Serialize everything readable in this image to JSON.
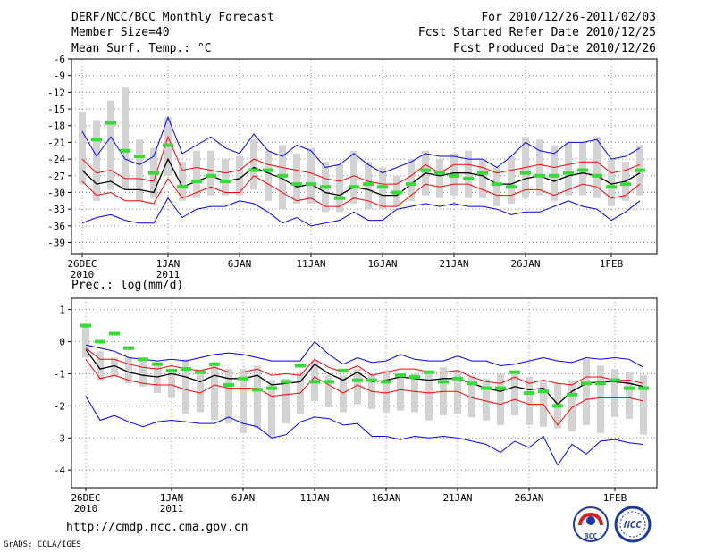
{
  "header": {
    "title": "DERF/NCC/BCC Monthly Forecast",
    "member_size": "Member Size=40",
    "variable": "Mean Surf. Temp.: °C",
    "for_period": "For 2010/12/26-2011/02/03",
    "fcst_started": "Fcst Started Refer Date 2010/12/25",
    "fcst_produced": "Fcst Produced Date 2010/12/26"
  },
  "footer": {
    "url": "http://cmdp.ncc.cma.gov.cn",
    "credit": "GrADS: COLA/IGES",
    "logo_bcc": "BCC",
    "logo_ncc": "NCC"
  },
  "colors": {
    "envelope": "#0000ff",
    "spread": "#ff0000",
    "mean": "#000000",
    "box": "#d3d3d3",
    "observed": "#33dd33",
    "grid": "#888888"
  },
  "chart_data": [
    {
      "type": "line",
      "title": "Mean Surf. Temp.: °C",
      "x_start": "2010-12-26",
      "x_end": "2011-02-03",
      "x_ticks": [
        {
          "day": 0,
          "label": "26DEC",
          "sub": "2010"
        },
        {
          "day": 6,
          "label": "1JAN",
          "sub": "2011"
        },
        {
          "day": 11,
          "label": "6JAN",
          "sub": ""
        },
        {
          "day": 16,
          "label": "11JAN",
          "sub": ""
        },
        {
          "day": 21,
          "label": "16JAN",
          "sub": ""
        },
        {
          "day": 26,
          "label": "21JAN",
          "sub": ""
        },
        {
          "day": 31,
          "label": "26JAN",
          "sub": ""
        },
        {
          "day": 37,
          "label": "1FEB",
          "sub": ""
        }
      ],
      "y_ticks": [
        "-6",
        "-9",
        "-12",
        "-15",
        "-18",
        "-21",
        "-24",
        "-27",
        "-30",
        "-33",
        "-36",
        "-39"
      ],
      "ylim": [
        -41,
        -6
      ],
      "grid": true,
      "series": [
        {
          "name": "max",
          "values": [
            -19,
            -23.5,
            -20,
            -24,
            -25,
            -23.5,
            -16.5,
            -23,
            -21.5,
            -20,
            -22,
            -23,
            -19.5,
            -22.5,
            -23.5,
            -21.5,
            -22.5,
            -25.5,
            -25,
            -23,
            -25,
            -26.5,
            -25.5,
            -24.5,
            -23,
            -23.5,
            -23.5,
            -24,
            -24,
            -25.5,
            -23.5,
            -21,
            -22.5,
            -23,
            -21,
            -21,
            -20.5,
            -24,
            -23.5,
            -22
          ]
        },
        {
          "name": "upper",
          "values": [
            -24,
            -26.5,
            -26,
            -27.5,
            -27.5,
            -28,
            -20,
            -26,
            -25.5,
            -26,
            -26.5,
            -26,
            -24,
            -25,
            -25.5,
            -26,
            -26.5,
            -27.5,
            -28,
            -27,
            -28,
            -28.5,
            -28.5,
            -27,
            -25,
            -26.5,
            -25,
            -25,
            -25.5,
            -26.5,
            -26,
            -25.5,
            -25,
            -25.5,
            -25,
            -24.5,
            -24.5,
            -26.5,
            -26,
            -25
          ]
        },
        {
          "name": "mean",
          "values": [
            -26,
            -28.5,
            -28,
            -29.5,
            -29.5,
            -30,
            -24,
            -29,
            -28,
            -27,
            -28,
            -27.5,
            -25.5,
            -26.5,
            -27.5,
            -29,
            -28.5,
            -30,
            -30.5,
            -29,
            -29.5,
            -30.5,
            -30.5,
            -28.5,
            -26.5,
            -27,
            -26.5,
            -26.5,
            -27,
            -28.5,
            -28.5,
            -27.5,
            -27,
            -28,
            -27,
            -26.5,
            -27,
            -28.5,
            -28,
            -26.5
          ]
        },
        {
          "name": "lower",
          "values": [
            -28,
            -30.5,
            -30,
            -31.5,
            -31.5,
            -32,
            -27.5,
            -31,
            -30,
            -29,
            -30,
            -30,
            -27,
            -28.5,
            -30,
            -31.5,
            -31,
            -32.5,
            -32.5,
            -31,
            -31.5,
            -32.5,
            -32.5,
            -30.5,
            -28.5,
            -29,
            -28.5,
            -28.5,
            -29.5,
            -30.5,
            -30.5,
            -29.5,
            -29.5,
            -30.5,
            -29.5,
            -28.5,
            -29,
            -31,
            -30.5,
            -28.5
          ]
        },
        {
          "name": "min",
          "values": [
            -35.5,
            -34.5,
            -34,
            -35,
            -35.5,
            -35.5,
            -31,
            -34.5,
            -33,
            -32.5,
            -32.5,
            -31.5,
            -32,
            -33.5,
            -35.5,
            -34.5,
            -36,
            -35.5,
            -35,
            -33.5,
            -35,
            -35,
            -33,
            -32.5,
            -32,
            -32.5,
            -32,
            -32.5,
            -32.5,
            -33,
            -34,
            -33.5,
            -33.5,
            -32.5,
            -31.5,
            -32.5,
            -33,
            -35,
            -33.5,
            -31.5
          ]
        },
        {
          "name": "box_top",
          "values": [
            -15.5,
            -17,
            -13.5,
            -11,
            -20.5,
            -22,
            -16.5,
            -24.5,
            -22.5,
            -22.5,
            -24,
            -23.5,
            -20.5,
            -22.5,
            -21.5,
            -23,
            -22,
            -24.5,
            -25,
            -22.5,
            -24.5,
            -25.5,
            -27,
            -24,
            -22.5,
            -24,
            -23,
            -22.5,
            -24,
            -25.5,
            -23.5,
            -20,
            -20.5,
            -21.5,
            -21,
            -21,
            -20,
            -24,
            -24.5,
            -21.5
          ]
        },
        {
          "name": "box_bottom",
          "values": [
            -28.5,
            -31.5,
            -29.5,
            -29.5,
            -31.5,
            -31,
            -27,
            -31.5,
            -31,
            -30.5,
            -30.5,
            -30.5,
            -29.5,
            -31.5,
            -33,
            -32,
            -32,
            -33.5,
            -33.5,
            -32,
            -33,
            -33,
            -32.5,
            -31.5,
            -30.5,
            -31,
            -30.5,
            -31,
            -31,
            -32.5,
            -32,
            -31,
            -30.5,
            -31.5,
            -30.5,
            -30.5,
            -31,
            -32.5,
            -31.5,
            -30.5
          ]
        },
        {
          "name": "observed",
          "values": [
            null,
            -20.5,
            -17.5,
            -22.5,
            -23.5,
            -26.5,
            -21.5,
            -29,
            -28,
            -27,
            -28,
            null,
            -26,
            -26,
            -27,
            -28.5,
            -28.5,
            -29,
            -31,
            -29,
            -28.5,
            -29,
            -30,
            -28.5,
            -26,
            -26.5,
            -27,
            -27.5,
            -26.5,
            -28.5,
            -29,
            -26.5,
            -27,
            -27,
            -26.5,
            -26,
            -27,
            -29,
            -28.5,
            -26
          ]
        }
      ]
    },
    {
      "type": "line",
      "title": "Prec.: log(mm/d)",
      "x_start": "2010-12-26",
      "x_end": "2011-02-03",
      "x_ticks": [
        {
          "day": 0,
          "label": "26DEC",
          "sub": "2010"
        },
        {
          "day": 6,
          "label": "1JAN",
          "sub": "2011"
        },
        {
          "day": 11,
          "label": "6JAN",
          "sub": ""
        },
        {
          "day": 16,
          "label": "11JAN",
          "sub": ""
        },
        {
          "day": 21,
          "label": "16JAN",
          "sub": ""
        },
        {
          "day": 26,
          "label": "21JAN",
          "sub": ""
        },
        {
          "day": 31,
          "label": "26JAN",
          "sub": ""
        },
        {
          "day": 37,
          "label": "1FEB",
          "sub": ""
        }
      ],
      "y_ticks": [
        "1",
        "0",
        "-1",
        "-2",
        "-3",
        "-4"
      ],
      "ylim": [
        -4.55,
        1.35
      ],
      "grid": true,
      "series": [
        {
          "name": "max",
          "values": [
            -0.1,
            -0.2,
            -0.3,
            -0.5,
            -0.55,
            -0.6,
            -0.55,
            -0.6,
            -0.5,
            -0.4,
            -0.35,
            -0.4,
            -0.5,
            -0.6,
            -0.6,
            -0.6,
            0,
            -0.4,
            -0.7,
            -0.5,
            -0.65,
            -0.6,
            -0.4,
            -0.55,
            -0.6,
            -0.6,
            -0.45,
            -0.6,
            -0.6,
            -0.75,
            -0.7,
            -0.6,
            -0.5,
            -0.6,
            -0.65,
            -0.5,
            -0.55,
            -0.5,
            -0.55,
            -0.8
          ]
        },
        {
          "name": "upper",
          "values": [
            -0.2,
            -0.55,
            -0.55,
            -0.7,
            -0.8,
            -0.85,
            -0.75,
            -0.85,
            -0.9,
            -0.8,
            -0.95,
            -0.95,
            -0.85,
            -1.05,
            -1,
            -1.05,
            -0.55,
            -0.8,
            -0.95,
            -0.75,
            -1.05,
            -0.95,
            -0.85,
            -0.85,
            -0.95,
            -0.95,
            -0.9,
            -1.1,
            -1.25,
            -1.3,
            -1.1,
            -1.3,
            -1.2,
            -1.3,
            -1.35,
            -1.1,
            -1.1,
            -1.2,
            -1.2,
            -1.3
          ]
        },
        {
          "name": "mean",
          "values": [
            -0.25,
            -0.85,
            -0.75,
            -0.95,
            -1.05,
            -1.1,
            -1,
            -1.1,
            -1.25,
            -1.05,
            -1.15,
            -1.15,
            -1.05,
            -1.35,
            -1.3,
            -1.25,
            -0.7,
            -1,
            -1.2,
            -0.95,
            -1.25,
            -1.2,
            -1.1,
            -1.15,
            -1.2,
            -1.15,
            -1.15,
            -1.3,
            -1.45,
            -1.55,
            -1.4,
            -1.5,
            -1.45,
            -1.95,
            -1.55,
            -1.3,
            -1.25,
            -1.25,
            -1.3,
            -1.4
          ]
        },
        {
          "name": "lower",
          "values": [
            -0.55,
            -1.15,
            -1.05,
            -1.2,
            -1.3,
            -1.35,
            -1.35,
            -1.5,
            -1.6,
            -1.35,
            -1.45,
            -1.45,
            -1.45,
            -1.7,
            -1.65,
            -1.6,
            -1.1,
            -1.35,
            -1.6,
            -1.35,
            -1.55,
            -1.6,
            -1.5,
            -1.55,
            -1.6,
            -1.55,
            -1.55,
            -1.75,
            -1.85,
            -1.95,
            -1.8,
            -1.95,
            -1.95,
            -2.6,
            -2.05,
            -1.8,
            -1.75,
            -1.75,
            -1.75,
            -1.85
          ]
        },
        {
          "name": "min",
          "values": [
            -1.7,
            -2.45,
            -2.3,
            -2.5,
            -2.65,
            -2.5,
            -2.45,
            -2.5,
            -2.55,
            -2.55,
            -2.35,
            -2.55,
            -2.65,
            -3,
            -2.9,
            -2.5,
            -2.35,
            -2.4,
            -2.6,
            -2.55,
            -2.95,
            -2.95,
            -3.05,
            -2.95,
            -3,
            -2.95,
            -3,
            -3.1,
            -3.2,
            -3.45,
            -3.1,
            -3.3,
            -2.95,
            -3.85,
            -3.2,
            -3.5,
            -3.1,
            -3.05,
            -3.15,
            -3.2
          ]
        },
        {
          "name": "box_top",
          "values": [
            0.5,
            -0.3,
            -0.5,
            -0.5,
            -0.6,
            -0.75,
            -0.9,
            -0.55,
            -0.95,
            -0.75,
            -0.85,
            -0.85,
            -0.75,
            -1.2,
            -1.15,
            -0.95,
            -0.6,
            -1.05,
            -1.05,
            -0.85,
            -1,
            -0.9,
            -1.1,
            -1,
            -0.95,
            -0.8,
            -0.9,
            -1.1,
            -1.15,
            -1,
            -0.9,
            -1.1,
            -1.25,
            -1.3,
            -1.2,
            -0.55,
            -0.75,
            -0.85,
            -0.95,
            -1.05
          ]
        },
        {
          "name": "box_bottom",
          "values": [
            -0.5,
            -1.2,
            -1.1,
            -1.3,
            -1.4,
            -1.6,
            -1.75,
            -2.25,
            -2.2,
            -2.45,
            -2.55,
            -2.85,
            -2.7,
            -2.95,
            -2.55,
            -2.25,
            -1.85,
            -2.05,
            -2.2,
            -1.95,
            -2.1,
            -2.2,
            -2.15,
            -2.2,
            -2.45,
            -2.3,
            -2.25,
            -2.35,
            -2.45,
            -2.6,
            -2.3,
            -2.6,
            -2.65,
            -2.7,
            -2.8,
            -2.6,
            -2.85,
            -2.35,
            -2.4,
            -2.9
          ]
        },
        {
          "name": "observed",
          "values": [
            0.5,
            0,
            0.25,
            -0.2,
            -0.55,
            -0.7,
            -0.9,
            -0.85,
            -0.95,
            -0.7,
            -1.35,
            -1.15,
            -1.5,
            -1.45,
            -1.25,
            -0.75,
            -1.25,
            -1.25,
            -0.9,
            -1.2,
            -1.2,
            -1.25,
            -1.05,
            -1.1,
            -0.95,
            -1.25,
            -1.15,
            -1.3,
            -1.45,
            -1.45,
            -0.95,
            -1.6,
            -1.55,
            -2,
            -1.65,
            -1.3,
            -1.3,
            -1.2,
            -1.45,
            -1.45
          ]
        }
      ]
    }
  ]
}
